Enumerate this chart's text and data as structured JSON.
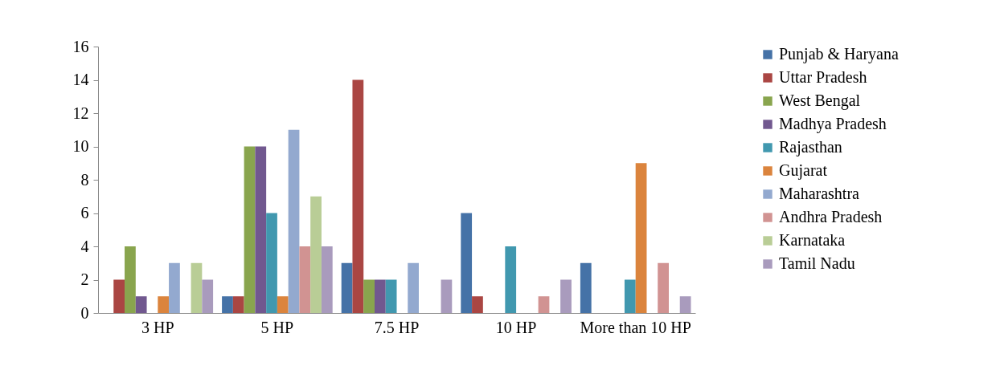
{
  "chart_data": {
    "type": "bar",
    "categories": [
      "3 HP",
      "5 HP",
      "7.5 HP",
      "10 HP",
      "More than 10 HP"
    ],
    "series": [
      {
        "name": "Punjab & Haryana",
        "color": "#4572a7",
        "values": [
          0,
          1,
          3,
          6,
          3
        ]
      },
      {
        "name": "Uttar Pradesh",
        "color": "#aa4643",
        "values": [
          2,
          1,
          14,
          1,
          0
        ]
      },
      {
        "name": "West Bengal",
        "color": "#89a54e",
        "values": [
          4,
          10,
          2,
          0,
          0
        ]
      },
      {
        "name": "Madhya Pradesh",
        "color": "#71588f",
        "values": [
          1,
          10,
          2,
          0,
          0
        ]
      },
      {
        "name": "Rajasthan",
        "color": "#4198af",
        "values": [
          0,
          6,
          2,
          4,
          2
        ]
      },
      {
        "name": "Gujarat",
        "color": "#db843d",
        "values": [
          1,
          1,
          0,
          0,
          9
        ]
      },
      {
        "name": "Maharashtra",
        "color": "#93a9cf",
        "values": [
          3,
          11,
          3,
          0,
          0
        ]
      },
      {
        "name": "Andhra Pradesh",
        "color": "#d19392",
        "values": [
          0,
          4,
          0,
          1,
          3
        ]
      },
      {
        "name": "Karnataka",
        "color": "#b9cd96",
        "values": [
          3,
          7,
          0,
          0,
          0
        ]
      },
      {
        "name": "Tamil Nadu",
        "color": "#a99bbd",
        "values": [
          2,
          4,
          2,
          2,
          1
        ]
      }
    ],
    "ylim": [
      0,
      16
    ],
    "yticks": [
      0,
      2,
      4,
      6,
      8,
      10,
      12,
      14,
      16
    ],
    "grid": false,
    "legend": "right"
  }
}
